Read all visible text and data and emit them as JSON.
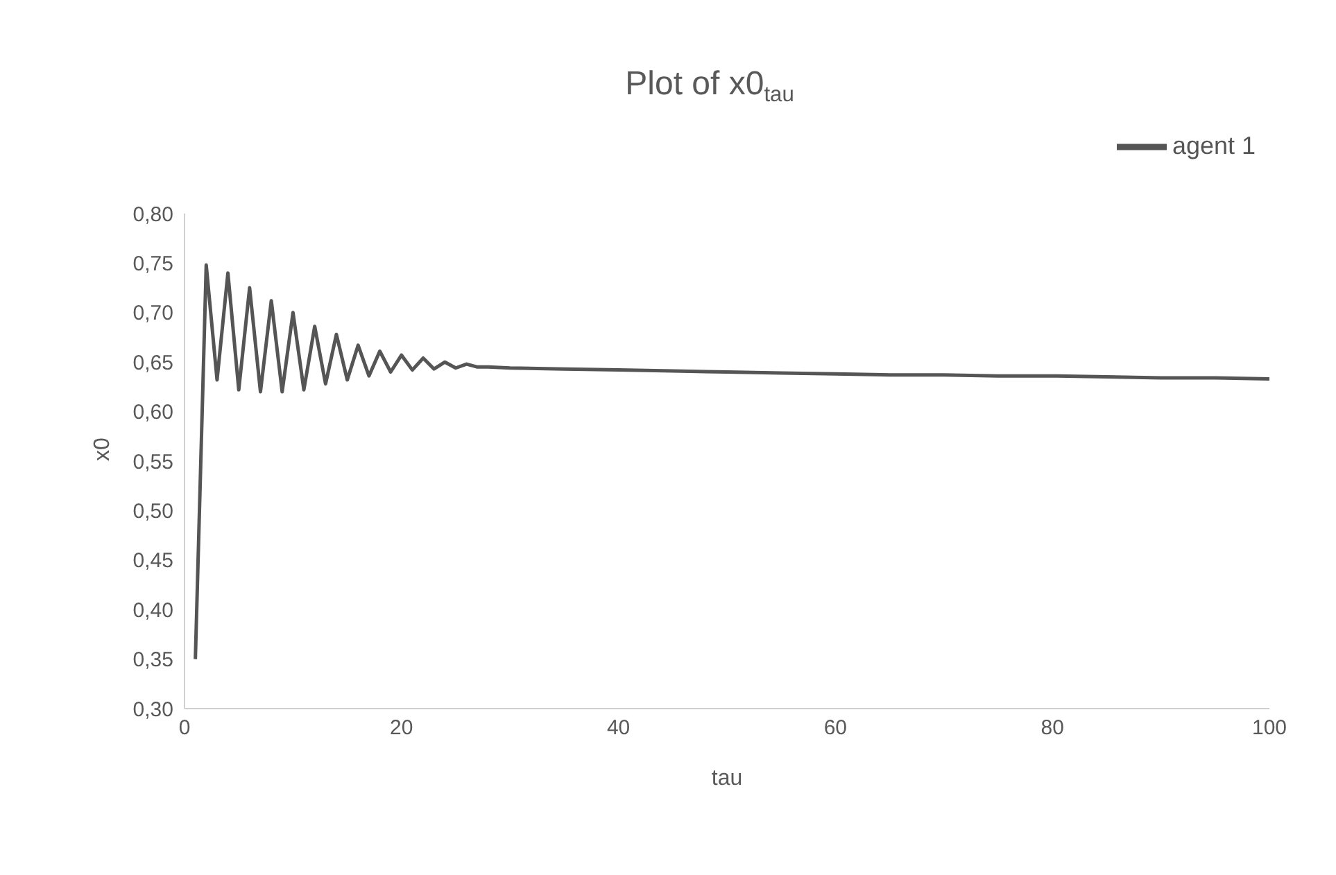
{
  "chart_data": {
    "type": "line",
    "title": "Plot of x0$_{tau}$",
    "xlabel": "tau",
    "ylabel": "x0",
    "x": [
      1,
      2,
      3,
      4,
      5,
      6,
      7,
      8,
      9,
      10,
      11,
      12,
      13,
      14,
      15,
      16,
      17,
      18,
      19,
      20,
      21,
      22,
      23,
      24,
      25,
      26,
      27,
      28,
      30,
      35,
      40,
      45,
      50,
      55,
      60,
      65,
      70,
      75,
      80,
      85,
      90,
      95,
      100
    ],
    "series": [
      {
        "name": "agent 1",
        "color": "#555555",
        "values": [
          0.35,
          0.748,
          0.632,
          0.74,
          0.622,
          0.725,
          0.62,
          0.712,
          0.62,
          0.7,
          0.622,
          0.686,
          0.628,
          0.678,
          0.632,
          0.667,
          0.636,
          0.661,
          0.64,
          0.657,
          0.642,
          0.654,
          0.643,
          0.65,
          0.644,
          0.648,
          0.645,
          0.645,
          0.644,
          0.643,
          0.642,
          0.641,
          0.64,
          0.639,
          0.638,
          0.637,
          0.637,
          0.636,
          0.636,
          0.635,
          0.634,
          0.634,
          0.633
        ]
      }
    ],
    "xlim": [
      0,
      100
    ],
    "xticks": [
      0,
      20,
      40,
      60,
      80,
      100
    ],
    "ylim": [
      0.3,
      0.8
    ],
    "yticks": [
      {
        "value": 0.3,
        "label": "0,30"
      },
      {
        "value": 0.35,
        "label": "0,35"
      },
      {
        "value": 0.4,
        "label": "0,40"
      },
      {
        "value": 0.45,
        "label": "0,45"
      },
      {
        "value": 0.5,
        "label": "0,50"
      },
      {
        "value": 0.55,
        "label": "0,55"
      },
      {
        "value": 0.6,
        "label": "0,60"
      },
      {
        "value": 0.65,
        "label": "0,65"
      },
      {
        "value": 0.7,
        "label": "0,70"
      },
      {
        "value": 0.75,
        "label": "0,75"
      },
      {
        "value": 0.8,
        "label": "0,80"
      }
    ],
    "legend": "top right",
    "grid": false,
    "marker": "none",
    "line_style": "solid"
  }
}
